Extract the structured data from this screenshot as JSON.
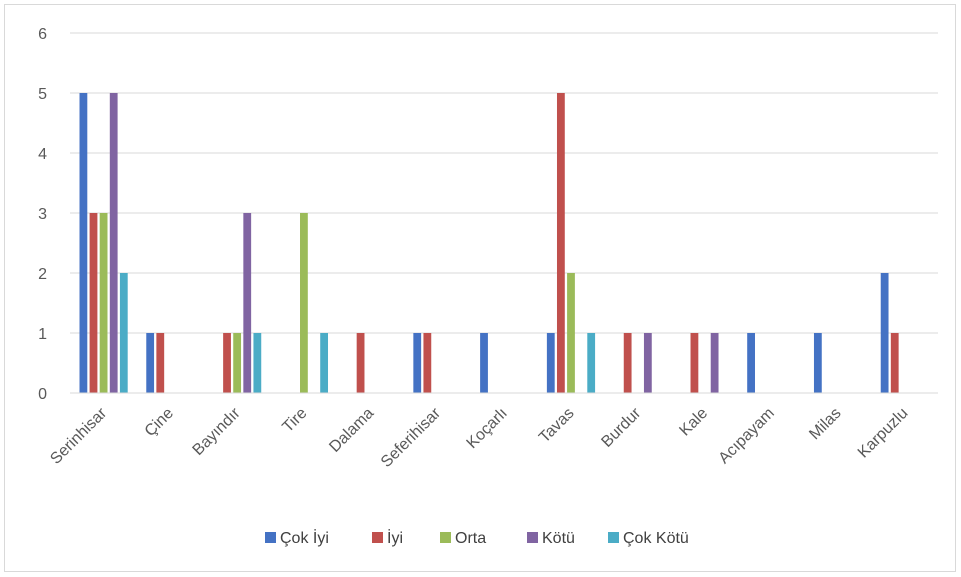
{
  "chart_data": {
    "type": "bar",
    "title": "",
    "xlabel": "",
    "ylabel": "",
    "ylim": [
      0,
      6
    ],
    "yticks": [
      "0",
      "1",
      "2",
      "3",
      "4",
      "5",
      "6"
    ],
    "grid": true,
    "legend_position": "bottom",
    "categories": [
      "Serinhisar",
      "Çine",
      "Bayındır",
      "Tire",
      "Dalama",
      "Seferihisar",
      "Koçarlı",
      "Tavas",
      "Burdur",
      "Kale",
      "Acıpayam",
      "Milas",
      "Karpuzlu"
    ],
    "series": [
      {
        "name": "Çok İyi",
        "color": "#4472c4",
        "values": [
          5,
          1,
          0,
          0,
          0,
          1,
          1,
          1,
          0,
          0,
          1,
          1,
          2
        ]
      },
      {
        "name": "İyi",
        "color": "#c0504d",
        "values": [
          3,
          1,
          1,
          0,
          1,
          1,
          0,
          5,
          1,
          1,
          0,
          0,
          1
        ]
      },
      {
        "name": "Orta",
        "color": "#9bbb59",
        "values": [
          3,
          0,
          1,
          3,
          0,
          0,
          0,
          2,
          0,
          0,
          0,
          0,
          0
        ]
      },
      {
        "name": "Kötü",
        "color": "#8064a2",
        "values": [
          5,
          0,
          3,
          0,
          0,
          0,
          0,
          0,
          1,
          1,
          0,
          0,
          0
        ]
      },
      {
        "name": "Çok Kötü",
        "color": "#4bacc6",
        "values": [
          2,
          0,
          1,
          1,
          0,
          0,
          0,
          1,
          0,
          0,
          0,
          0,
          0
        ]
      }
    ]
  }
}
